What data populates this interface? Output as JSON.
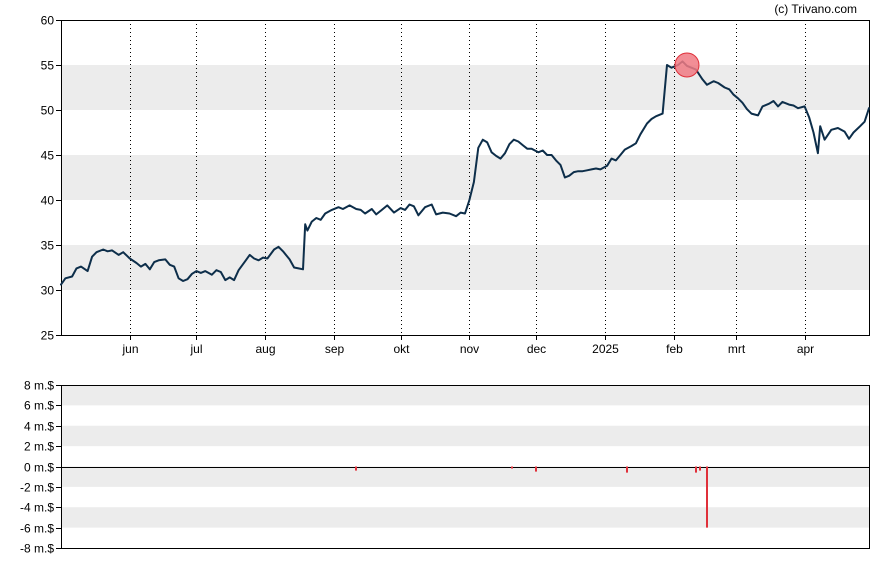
{
  "copyright": "(c) Trivano.com",
  "colors": {
    "price_line": "#0d2e4a",
    "band": "#ececec",
    "volume_bar": "#e0303a",
    "marker_fill": "#f07a84",
    "marker_stroke": "#e0303a",
    "axis": "#000000"
  },
  "chart_data": [
    {
      "type": "line",
      "name": "price",
      "ylim": [
        25,
        60
      ],
      "yticks": [
        25,
        30,
        35,
        40,
        45,
        50,
        55,
        60
      ],
      "bands": [
        [
          30,
          35
        ],
        [
          40,
          45
        ],
        [
          50,
          55
        ]
      ],
      "grid": "vertical dotted lines at month ticks",
      "xlim": [
        "2024-05-01",
        "2025-04-30"
      ],
      "xticks": [
        {
          "label": "jun",
          "date": "2024-06-01"
        },
        {
          "label": "jul",
          "date": "2024-07-01"
        },
        {
          "label": "aug",
          "date": "2024-08-01"
        },
        {
          "label": "sep",
          "date": "2024-09-01"
        },
        {
          "label": "okt",
          "date": "2024-10-01"
        },
        {
          "label": "nov",
          "date": "2024-11-01"
        },
        {
          "label": "dec",
          "date": "2024-12-01"
        },
        {
          "label": "2025",
          "date": "2025-01-01"
        },
        {
          "label": "feb",
          "date": "2025-02-01"
        },
        {
          "label": "mrt",
          "date": "2025-03-01"
        },
        {
          "label": "apr",
          "date": "2025-04-01"
        }
      ],
      "series": [
        {
          "points": [
            [
              "2024-05-01",
              30.6
            ],
            [
              "2024-05-03",
              31.3
            ],
            [
              "2024-05-06",
              31.5
            ],
            [
              "2024-05-08",
              32.4
            ],
            [
              "2024-05-10",
              32.6
            ],
            [
              "2024-05-13",
              32.1
            ],
            [
              "2024-05-15",
              33.7
            ],
            [
              "2024-05-17",
              34.2
            ],
            [
              "2024-05-20",
              34.5
            ],
            [
              "2024-05-22",
              34.3
            ],
            [
              "2024-05-24",
              34.4
            ],
            [
              "2024-05-27",
              33.9
            ],
            [
              "2024-05-29",
              34.2
            ],
            [
              "2024-06-01",
              33.5
            ],
            [
              "2024-06-04",
              33.0
            ],
            [
              "2024-06-06",
              32.6
            ],
            [
              "2024-06-08",
              32.9
            ],
            [
              "2024-06-10",
              32.3
            ],
            [
              "2024-06-12",
              33.1
            ],
            [
              "2024-06-14",
              33.3
            ],
            [
              "2024-06-17",
              33.4
            ],
            [
              "2024-06-19",
              32.8
            ],
            [
              "2024-06-21",
              32.6
            ],
            [
              "2024-06-23",
              31.3
            ],
            [
              "2024-06-25",
              31.0
            ],
            [
              "2024-06-27",
              31.2
            ],
            [
              "2024-06-29",
              31.8
            ],
            [
              "2024-07-01",
              32.1
            ],
            [
              "2024-07-03",
              31.9
            ],
            [
              "2024-07-05",
              32.1
            ],
            [
              "2024-07-08",
              31.7
            ],
            [
              "2024-07-10",
              32.2
            ],
            [
              "2024-07-12",
              32.0
            ],
            [
              "2024-07-14",
              31.1
            ],
            [
              "2024-07-16",
              31.4
            ],
            [
              "2024-07-18",
              31.1
            ],
            [
              "2024-07-20",
              32.2
            ],
            [
              "2024-07-23",
              33.2
            ],
            [
              "2024-07-25",
              33.9
            ],
            [
              "2024-07-27",
              33.5
            ],
            [
              "2024-07-29",
              33.3
            ],
            [
              "2024-07-31",
              33.6
            ],
            [
              "2024-08-02",
              33.5
            ],
            [
              "2024-08-05",
              34.5
            ],
            [
              "2024-08-07",
              34.8
            ],
            [
              "2024-08-09",
              34.3
            ],
            [
              "2024-08-12",
              33.4
            ],
            [
              "2024-08-14",
              32.5
            ],
            [
              "2024-08-16",
              32.4
            ],
            [
              "2024-08-18",
              32.3
            ],
            [
              "2024-08-19",
              37.3
            ],
            [
              "2024-08-20",
              36.6
            ],
            [
              "2024-08-22",
              37.6
            ],
            [
              "2024-08-24",
              38.0
            ],
            [
              "2024-08-26",
              37.8
            ],
            [
              "2024-08-28",
              38.5
            ],
            [
              "2024-08-31",
              38.9
            ],
            [
              "2024-09-03",
              39.2
            ],
            [
              "2024-09-05",
              39.0
            ],
            [
              "2024-09-08",
              39.4
            ],
            [
              "2024-09-11",
              39.0
            ],
            [
              "2024-09-13",
              38.9
            ],
            [
              "2024-09-15",
              38.5
            ],
            [
              "2024-09-18",
              39.0
            ],
            [
              "2024-09-20",
              38.4
            ],
            [
              "2024-09-23",
              39.0
            ],
            [
              "2024-09-25",
              39.4
            ],
            [
              "2024-09-28",
              38.6
            ],
            [
              "2024-10-01",
              39.1
            ],
            [
              "2024-10-03",
              38.9
            ],
            [
              "2024-10-05",
              39.5
            ],
            [
              "2024-10-07",
              39.3
            ],
            [
              "2024-10-09",
              38.3
            ],
            [
              "2024-10-12",
              39.2
            ],
            [
              "2024-10-15",
              39.5
            ],
            [
              "2024-10-17",
              38.4
            ],
            [
              "2024-10-20",
              38.6
            ],
            [
              "2024-10-23",
              38.5
            ],
            [
              "2024-10-26",
              38.2
            ],
            [
              "2024-10-28",
              38.6
            ],
            [
              "2024-10-30",
              38.5
            ],
            [
              "2024-11-01",
              40.0
            ],
            [
              "2024-11-03",
              42.0
            ],
            [
              "2024-11-05",
              45.8
            ],
            [
              "2024-11-07",
              46.7
            ],
            [
              "2024-11-09",
              46.4
            ],
            [
              "2024-11-11",
              45.3
            ],
            [
              "2024-11-13",
              44.9
            ],
            [
              "2024-11-15",
              44.6
            ],
            [
              "2024-11-17",
              45.2
            ],
            [
              "2024-11-19",
              46.2
            ],
            [
              "2024-11-21",
              46.7
            ],
            [
              "2024-11-23",
              46.5
            ],
            [
              "2024-11-25",
              46.1
            ],
            [
              "2024-11-27",
              45.7
            ],
            [
              "2024-11-29",
              45.7
            ],
            [
              "2024-12-02",
              45.3
            ],
            [
              "2024-12-04",
              45.5
            ],
            [
              "2024-12-06",
              45.0
            ],
            [
              "2024-12-08",
              45.0
            ],
            [
              "2024-12-10",
              44.4
            ],
            [
              "2024-12-12",
              43.9
            ],
            [
              "2024-12-14",
              42.5
            ],
            [
              "2024-12-16",
              42.7
            ],
            [
              "2024-12-18",
              43.1
            ],
            [
              "2024-12-20",
              43.2
            ],
            [
              "2024-12-22",
              43.2
            ],
            [
              "2024-12-24",
              43.3
            ],
            [
              "2024-12-26",
              43.4
            ],
            [
              "2024-12-28",
              43.5
            ],
            [
              "2024-12-30",
              43.4
            ],
            [
              "2025-01-02",
              43.8
            ],
            [
              "2025-01-04",
              44.6
            ],
            [
              "2025-01-06",
              44.4
            ],
            [
              "2025-01-08",
              45.0
            ],
            [
              "2025-01-10",
              45.6
            ],
            [
              "2025-01-13",
              46.0
            ],
            [
              "2025-01-15",
              46.3
            ],
            [
              "2025-01-17",
              47.3
            ],
            [
              "2025-01-20",
              48.5
            ],
            [
              "2025-01-22",
              49.0
            ],
            [
              "2025-01-24",
              49.3
            ],
            [
              "2025-01-27",
              49.6
            ],
            [
              "2025-01-29",
              55.0
            ],
            [
              "2025-01-31",
              54.7
            ],
            [
              "2025-02-03",
              55.0
            ],
            [
              "2025-02-05",
              55.4
            ],
            [
              "2025-02-07",
              54.9
            ],
            [
              "2025-02-09",
              54.7
            ],
            [
              "2025-02-11",
              54.5
            ],
            [
              "2025-02-14",
              53.4
            ],
            [
              "2025-02-16",
              52.8
            ],
            [
              "2025-02-19",
              53.2
            ],
            [
              "2025-02-21",
              53.0
            ],
            [
              "2025-02-24",
              52.5
            ],
            [
              "2025-02-26",
              52.3
            ],
            [
              "2025-02-28",
              51.7
            ],
            [
              "2025-03-02",
              51.3
            ],
            [
              "2025-03-04",
              50.8
            ],
            [
              "2025-03-06",
              50.1
            ],
            [
              "2025-03-08",
              49.6
            ],
            [
              "2025-03-11",
              49.4
            ],
            [
              "2025-03-13",
              50.4
            ],
            [
              "2025-03-16",
              50.7
            ],
            [
              "2025-03-18",
              51.0
            ],
            [
              "2025-03-20",
              50.4
            ],
            [
              "2025-03-22",
              50.9
            ],
            [
              "2025-03-25",
              50.6
            ],
            [
              "2025-03-27",
              50.5
            ],
            [
              "2025-03-29",
              50.2
            ],
            [
              "2025-04-01",
              50.4
            ],
            [
              "2025-04-03",
              49.2
            ],
            [
              "2025-04-05",
              47.5
            ],
            [
              "2025-04-07",
              45.2
            ],
            [
              "2025-04-08",
              48.2
            ],
            [
              "2025-04-10",
              46.7
            ],
            [
              "2025-04-13",
              47.8
            ],
            [
              "2025-04-16",
              48.0
            ],
            [
              "2025-04-19",
              47.6
            ],
            [
              "2025-04-21",
              46.8
            ],
            [
              "2025-04-23",
              47.5
            ],
            [
              "2025-04-26",
              48.2
            ],
            [
              "2025-04-28",
              48.7
            ],
            [
              "2025-04-30",
              50.2
            ]
          ]
        }
      ],
      "marker": {
        "date": "2025-02-07",
        "value": 55.0
      }
    },
    {
      "type": "bar",
      "name": "volume",
      "unit": "m.$",
      "ylim": [
        -8,
        8
      ],
      "yticks": [
        8,
        6,
        4,
        2,
        0,
        -2,
        -4,
        -6,
        -8
      ],
      "ytick_labels": [
        "8 m.$",
        "6 m.$",
        "4 m.$",
        "2 m.$",
        "0 m.$",
        "-2 m.$",
        "-4 m.$",
        "-6 m.$",
        "-8 m.$"
      ],
      "bands": [
        [
          6,
          8
        ],
        [
          2,
          4
        ],
        [
          -2,
          0
        ],
        [
          -6,
          -4
        ]
      ],
      "bars": [
        {
          "date": "2024-09-11",
          "value": -0.4
        },
        {
          "date": "2024-11-20",
          "value": -0.2
        },
        {
          "date": "2024-12-01",
          "value": -0.5
        },
        {
          "date": "2025-01-11",
          "value": -0.6
        },
        {
          "date": "2025-02-11",
          "value": -0.6
        },
        {
          "date": "2025-02-13",
          "value": -0.4
        },
        {
          "date": "2025-02-16",
          "value": -6.0
        }
      ]
    }
  ]
}
